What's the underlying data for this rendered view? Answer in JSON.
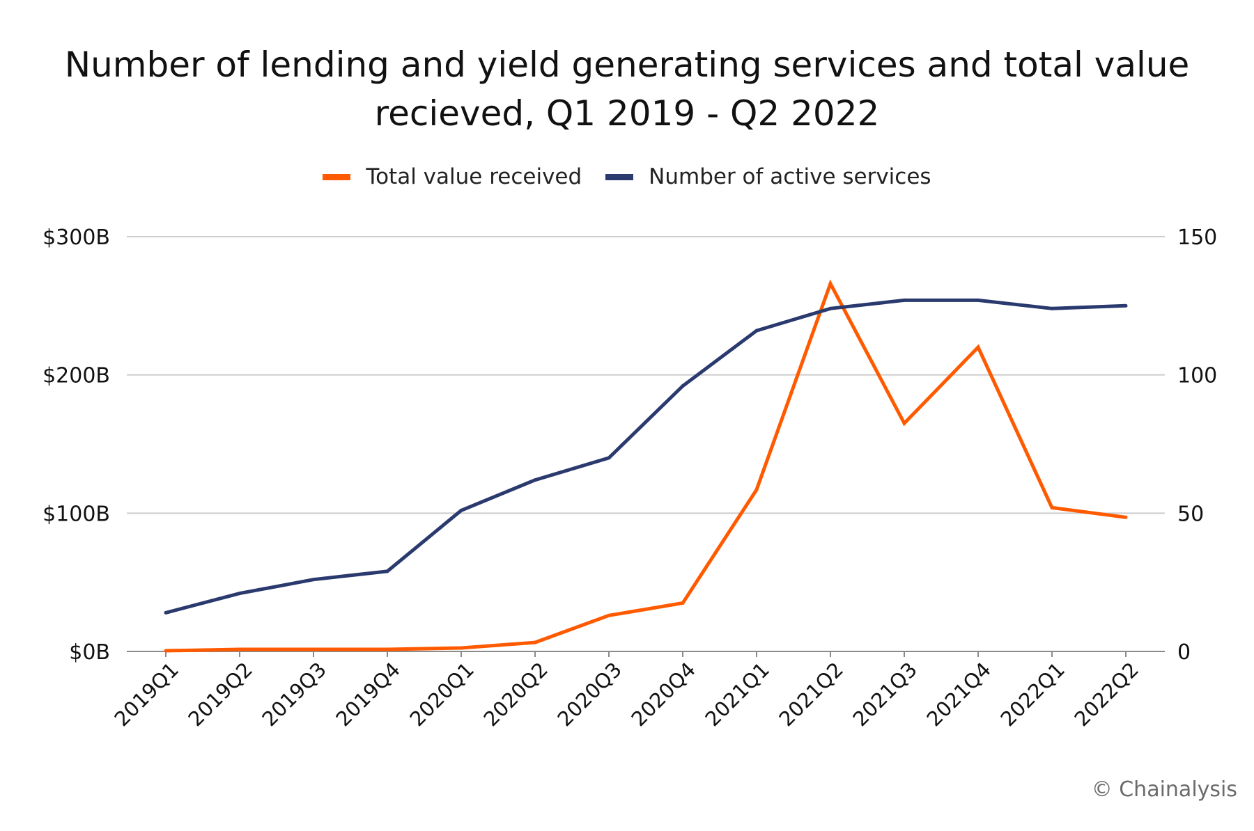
{
  "chart_data": {
    "type": "line",
    "title_lines": [
      "Number of lending and yield generating services and total value",
      "recieved, Q1 2019 - Q2 2022"
    ],
    "categories": [
      "2019Q1",
      "2019Q2",
      "2019Q3",
      "2019Q4",
      "2020Q1",
      "2020Q2",
      "2020Q3",
      "2020Q4",
      "2021Q1",
      "2021Q2",
      "2021Q3",
      "2021Q4",
      "2022Q1",
      "2022Q2"
    ],
    "series": [
      {
        "name": "Total value received",
        "axis": "left",
        "color": "#FF5A00",
        "values": [
          0.5,
          1.5,
          1.5,
          1.5,
          2.5,
          6.5,
          26,
          35,
          117,
          266,
          165,
          220,
          104,
          97
        ]
      },
      {
        "name": "Number of active services",
        "axis": "right",
        "color": "#2B3A6E",
        "values": [
          14,
          21,
          26,
          29,
          51,
          62,
          70,
          96,
          116,
          124,
          127,
          127,
          124,
          125
        ]
      }
    ],
    "y_left": {
      "ticks": [
        0,
        100,
        200,
        300
      ],
      "tick_labels": [
        "$0B",
        "$100B",
        "$200B",
        "$300B"
      ],
      "range": [
        0,
        300
      ]
    },
    "y_right": {
      "ticks": [
        0,
        50,
        100,
        150
      ],
      "tick_labels": [
        "0",
        "50",
        "100",
        "150"
      ],
      "range": [
        0,
        150
      ]
    },
    "grid": true,
    "legend_position": "top-center"
  },
  "footer": {
    "copyright": "© Chainalysis"
  }
}
